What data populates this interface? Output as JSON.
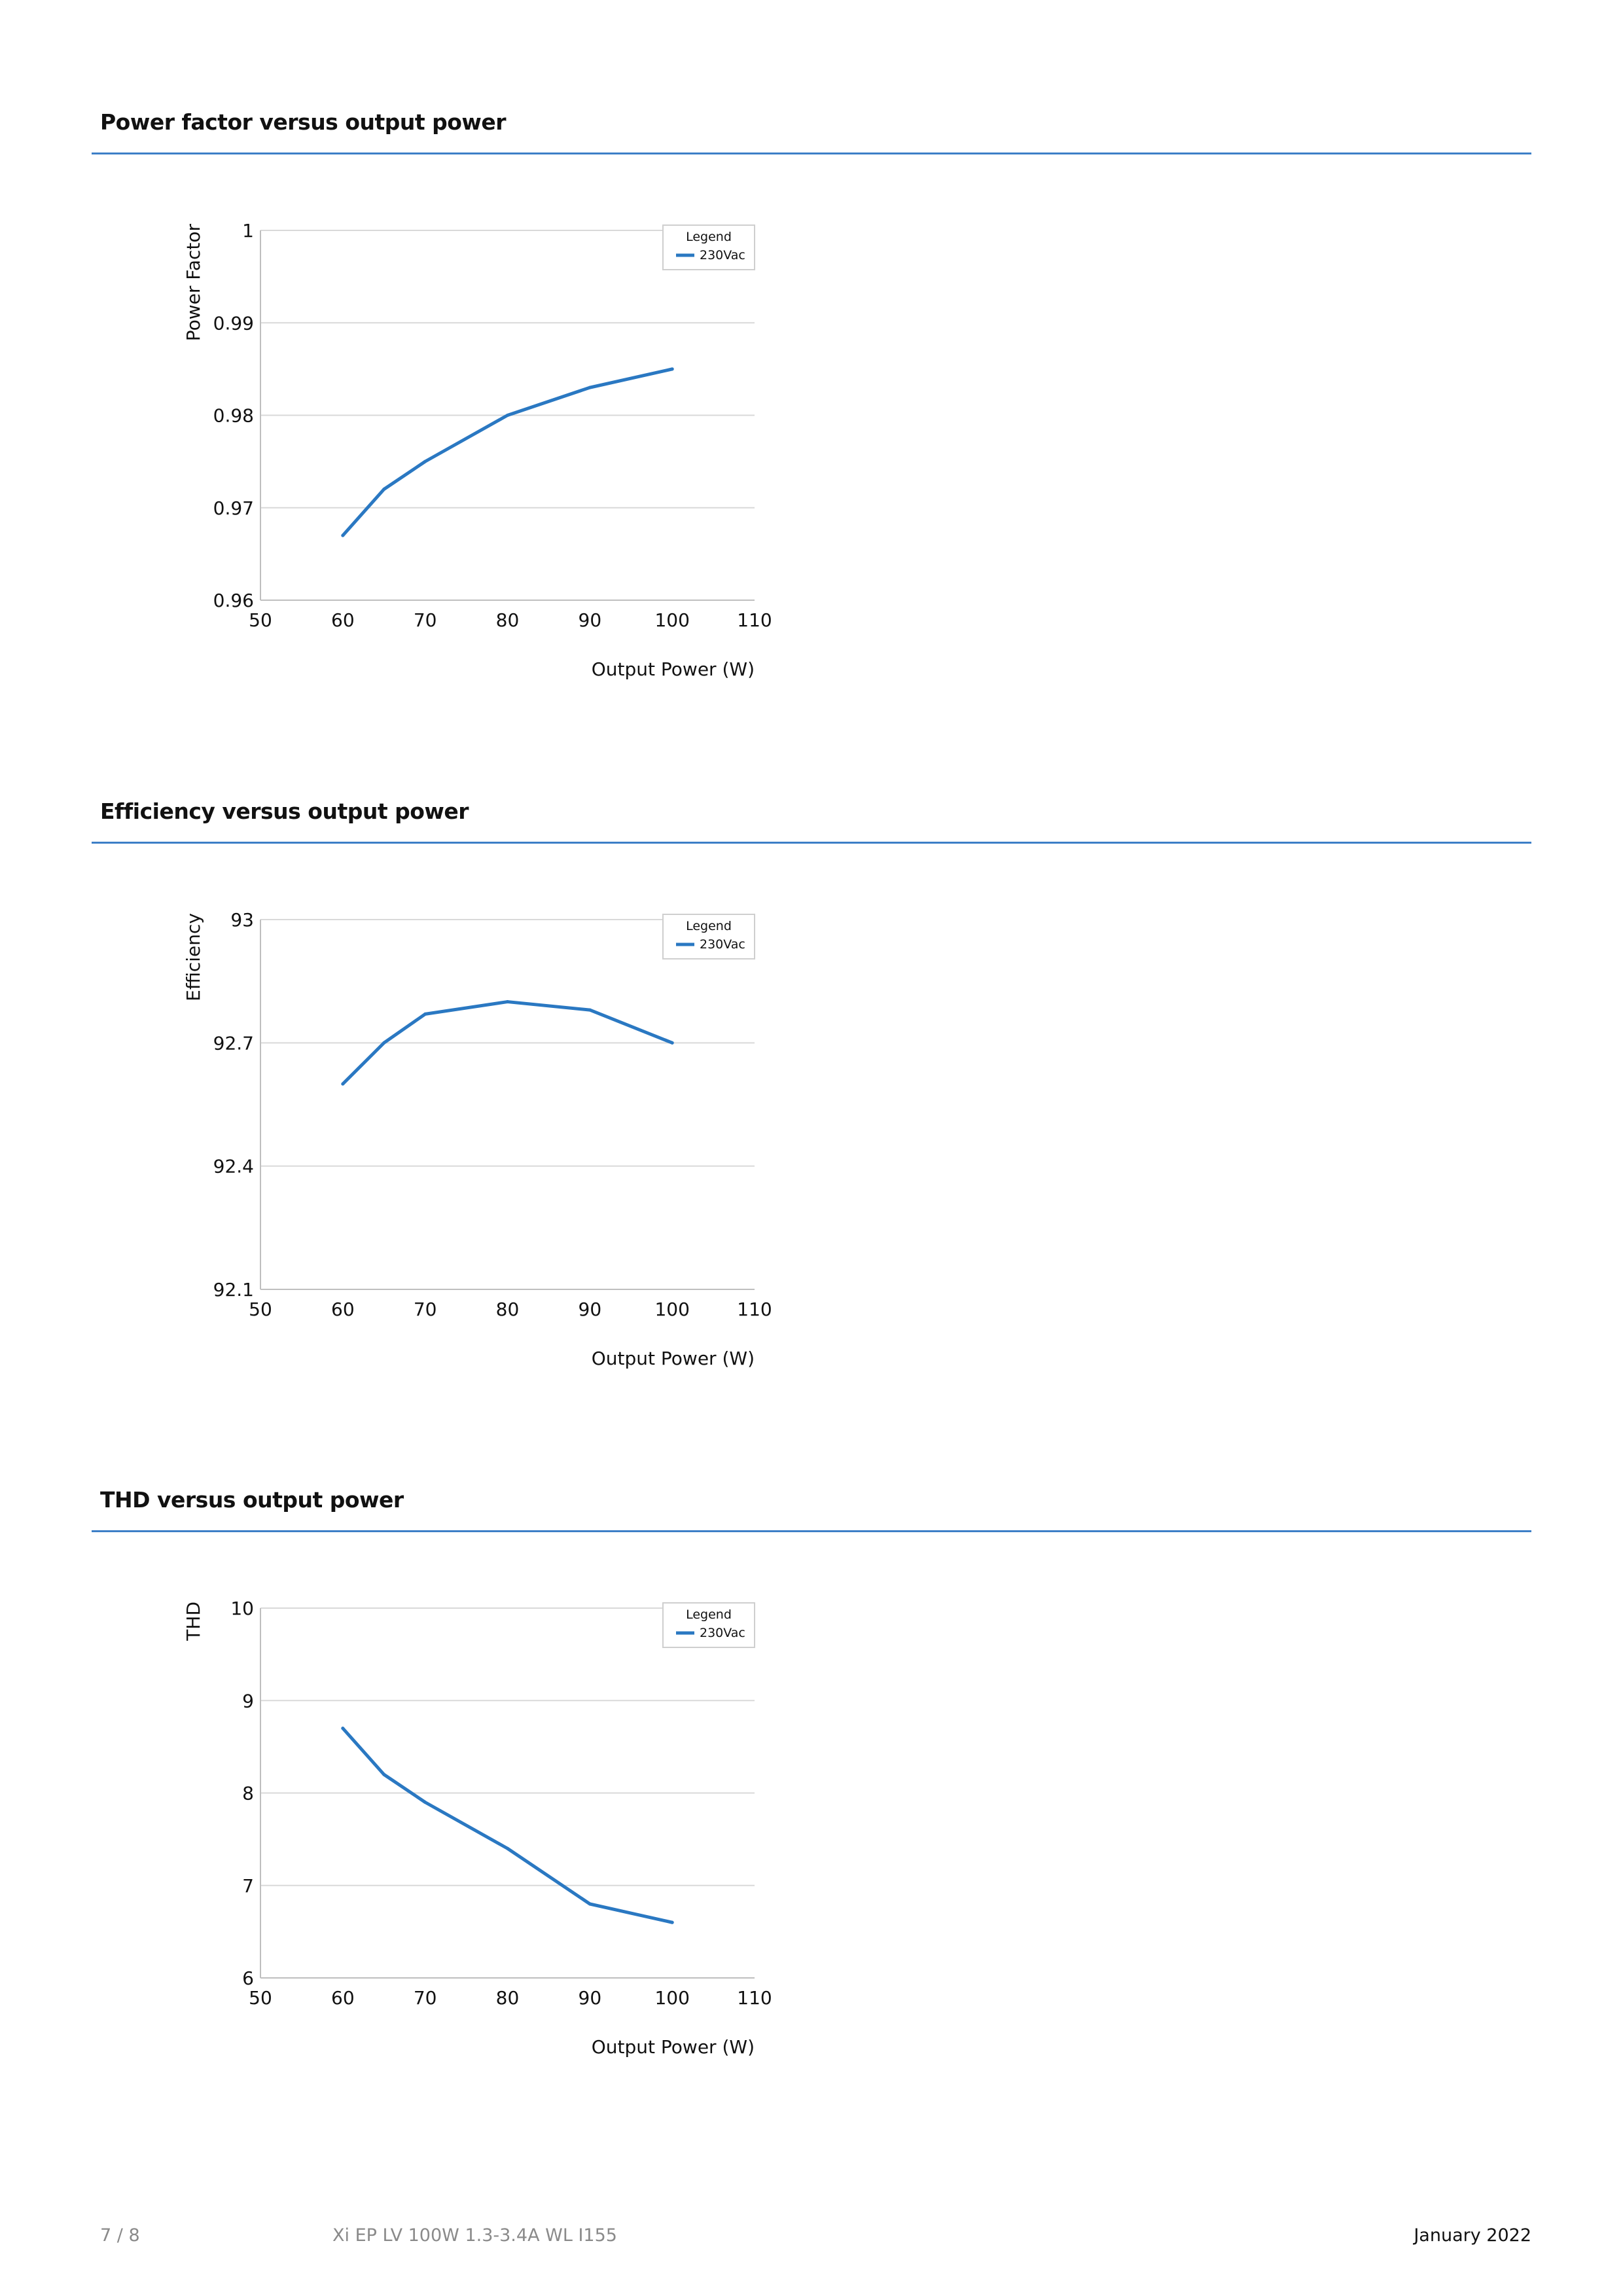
{
  "sections": [
    {
      "title": "Power factor versus output power"
    },
    {
      "title": "Efficiency versus output power"
    },
    {
      "title": "THD versus output power"
    }
  ],
  "chart_data": [
    {
      "type": "line",
      "title": "",
      "xlabel": "Output Power (W)",
      "ylabel": "Power Factor",
      "xlim": [
        50,
        110
      ],
      "ylim": [
        0.96,
        1
      ],
      "xticks": [
        "50",
        "60",
        "70",
        "80",
        "90",
        "100",
        "110"
      ],
      "yticks": [
        "0.96",
        "0.97",
        "0.98",
        "0.99",
        "1"
      ],
      "grid": "horizontal",
      "legend_title": "Legend",
      "legend_position": "top-right",
      "series": [
        {
          "name": "230Vac",
          "color": "#2a78c2",
          "x": [
            60,
            65,
            70,
            80,
            90,
            100
          ],
          "y": [
            0.967,
            0.972,
            0.975,
            0.98,
            0.983,
            0.985
          ]
        }
      ]
    },
    {
      "type": "line",
      "title": "",
      "xlabel": "Output Power (W)",
      "ylabel": "Efficiency",
      "xlim": [
        50,
        110
      ],
      "ylim": [
        92.1,
        93
      ],
      "xticks": [
        "50",
        "60",
        "70",
        "80",
        "90",
        "100",
        "110"
      ],
      "yticks": [
        "92.1",
        "92.4",
        "92.7",
        "93"
      ],
      "grid": "horizontal",
      "legend_title": "Legend",
      "legend_position": "top-right",
      "series": [
        {
          "name": "230Vac",
          "color": "#2a78c2",
          "x": [
            60,
            65,
            70,
            80,
            90,
            100
          ],
          "y": [
            92.6,
            92.7,
            92.77,
            92.8,
            92.78,
            92.7
          ]
        }
      ]
    },
    {
      "type": "line",
      "title": "",
      "xlabel": "Output Power (W)",
      "ylabel": "THD",
      "xlim": [
        50,
        110
      ],
      "ylim": [
        6,
        10
      ],
      "xticks": [
        "50",
        "60",
        "70",
        "80",
        "90",
        "100",
        "110"
      ],
      "yticks": [
        "6",
        "7",
        "8",
        "9",
        "10"
      ],
      "grid": "horizontal",
      "legend_title": "Legend",
      "legend_position": "top-right",
      "series": [
        {
          "name": "230Vac",
          "color": "#2a78c2",
          "x": [
            60,
            65,
            70,
            80,
            90,
            100
          ],
          "y": [
            8.7,
            8.2,
            7.9,
            7.4,
            6.8,
            6.6
          ]
        }
      ]
    }
  ],
  "footer": {
    "page": "7 / 8",
    "product": "Xi EP LV 100W 1.3-3.4A WL I155",
    "date": "January 2022"
  },
  "colors": {
    "accent_rule": "#3d7fc7",
    "series_line": "#2a78c2",
    "grid": "#d9d9d9",
    "footer_muted": "#8a8a8a"
  }
}
